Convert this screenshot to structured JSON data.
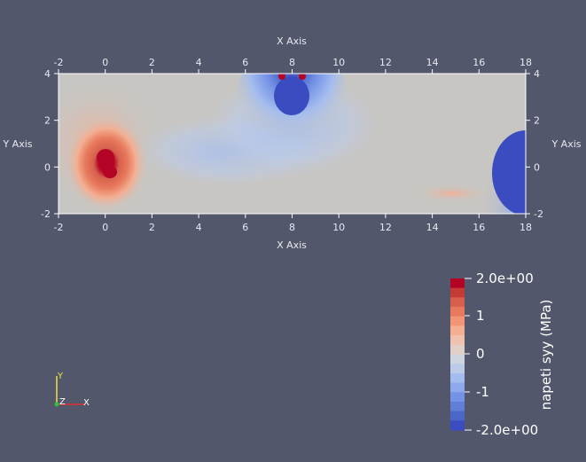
{
  "plot": {
    "x_axis_title": "X Axis",
    "y_axis_title": "Y Axis",
    "x_ticks": [
      "-2",
      "0",
      "2",
      "4",
      "6",
      "8",
      "10",
      "12",
      "14",
      "16",
      "18"
    ],
    "y_ticks": [
      "-2",
      "0",
      "2",
      "4"
    ],
    "x_range": [
      -2,
      18
    ],
    "y_range": [
      -2,
      4
    ]
  },
  "colorbar": {
    "title": "napeti syy (MPa)",
    "max_label": "2.0e+00",
    "min_label": "-2.0e+00",
    "tick_labels": [
      "1",
      "0",
      "-1"
    ],
    "range": [
      -2,
      2
    ],
    "colors_top_to_bottom": [
      "#b40426",
      "#c43a35",
      "#d6604d",
      "#e7795c",
      "#f29577",
      "#f4af93",
      "#efc2b0",
      "#e0cfc7",
      "#cfd5e0",
      "#bccbe8",
      "#a5bdee",
      "#8ea9ee",
      "#7593e6",
      "#5f7fd9",
      "#4a66c9",
      "#3b4cc0"
    ]
  },
  "orientation": {
    "y_label": "Y",
    "z_label": "Z",
    "x_label": "X",
    "colors": {
      "x": "#e03030",
      "y": "#f0e040",
      "z": "#30c040"
    }
  },
  "colors": {
    "background": "#52576b",
    "neutral_field": "#c8c6c2"
  }
}
